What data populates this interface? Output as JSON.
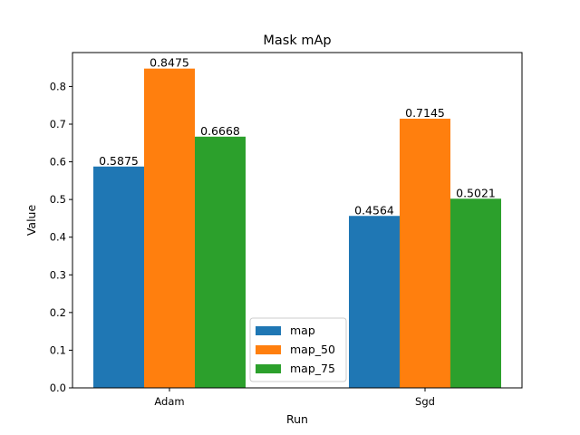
{
  "chart_data": {
    "type": "bar",
    "title": "Mask mAp",
    "xlabel": "Run",
    "ylabel": "Value",
    "categories": [
      "Adam",
      "Sgd"
    ],
    "series": [
      {
        "name": "map",
        "values": [
          0.5875,
          0.4564
        ],
        "labels": [
          "0.5875",
          "0.4564"
        ],
        "color": "#1f77b4"
      },
      {
        "name": "map_50",
        "values": [
          0.8475,
          0.7145
        ],
        "labels": [
          "0.8475",
          "0.7145"
        ],
        "color": "#ff7f0e"
      },
      {
        "name": "map_75",
        "values": [
          0.6668,
          0.5021
        ],
        "labels": [
          "0.6668",
          "0.5021"
        ],
        "color": "#2ca02c"
      }
    ],
    "ylim": [
      0,
      0.89
    ],
    "yticks": [
      "0.0",
      "0.1",
      "0.2",
      "0.3",
      "0.4",
      "0.5",
      "0.6",
      "0.7",
      "0.8"
    ],
    "grid": false,
    "legend": "lower-center"
  }
}
